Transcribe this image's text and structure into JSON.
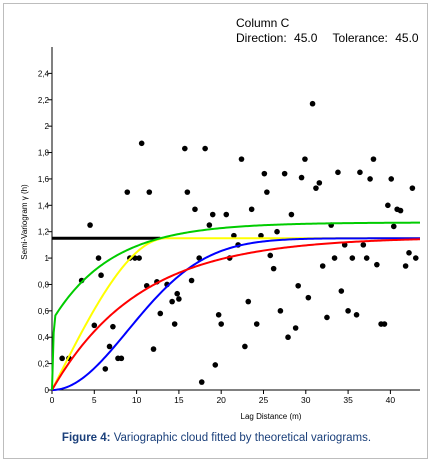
{
  "chart_data": {
    "type": "scatter",
    "header": {
      "title": "Column C",
      "direction_label": "Direction:",
      "direction_value": "45.0",
      "tolerance_label": "Tolerance:",
      "tolerance_value": "45.0"
    },
    "xlabel": "Lag Distance (m)",
    "ylabel": "Semi-Variogram γ (h)",
    "xlim": [
      0,
      43.5
    ],
    "ylim": [
      0,
      2.6
    ],
    "x_ticks": [
      0,
      5,
      10,
      15,
      20,
      25,
      30,
      35,
      40
    ],
    "y_ticks": [
      0,
      0.2,
      0.4,
      0.6,
      0.8,
      1,
      1.2,
      1.4,
      1.6,
      1.8,
      2,
      2.2,
      2.4
    ],
    "x_tick_labels": [
      "0",
      "5",
      "10",
      "15",
      "20",
      "25",
      "30",
      "35",
      "40"
    ],
    "y_tick_labels": [
      "0",
      "0,2",
      "0,4",
      "0,6",
      "0,8",
      "1",
      "1,2",
      "1,4",
      "1,6",
      "1,8",
      "2",
      "2,2",
      "2,4"
    ],
    "series": [
      {
        "kind": "points",
        "color": "#000000",
        "points": [
          [
            1.2,
            0.24
          ],
          [
            2.0,
            0.24
          ],
          [
            3.5,
            0.83
          ],
          [
            4.5,
            1.25
          ],
          [
            5.0,
            0.49
          ],
          [
            5.5,
            1.0
          ],
          [
            5.8,
            0.87
          ],
          [
            6.3,
            0.16
          ],
          [
            6.8,
            0.33
          ],
          [
            7.2,
            0.48
          ],
          [
            7.8,
            0.24
          ],
          [
            8.2,
            0.24
          ],
          [
            8.9,
            1.5
          ],
          [
            9.2,
            1.0
          ],
          [
            9.8,
            1.0
          ],
          [
            10.3,
            1.0
          ],
          [
            10.6,
            1.87
          ],
          [
            11.2,
            0.79
          ],
          [
            11.5,
            1.5
          ],
          [
            12.0,
            0.31
          ],
          [
            12.4,
            0.82
          ],
          [
            12.8,
            0.58
          ],
          [
            13.6,
            0.8
          ],
          [
            14.2,
            0.67
          ],
          [
            14.5,
            0.5
          ],
          [
            14.8,
            0.73
          ],
          [
            15.0,
            0.69
          ],
          [
            15.7,
            1.83
          ],
          [
            16.0,
            1.5
          ],
          [
            16.5,
            0.83
          ],
          [
            16.9,
            1.37
          ],
          [
            17.4,
            1.0
          ],
          [
            17.7,
            0.06
          ],
          [
            18.1,
            1.83
          ],
          [
            18.6,
            1.25
          ],
          [
            19.0,
            1.33
          ],
          [
            19.3,
            0.19
          ],
          [
            19.7,
            0.57
          ],
          [
            20.0,
            0.5
          ],
          [
            20.6,
            1.33
          ],
          [
            21.0,
            1.0
          ],
          [
            21.5,
            1.17
          ],
          [
            22.0,
            1.1
          ],
          [
            22.4,
            1.75
          ],
          [
            22.8,
            0.33
          ],
          [
            23.2,
            0.67
          ],
          [
            23.6,
            1.37
          ],
          [
            24.2,
            0.5
          ],
          [
            24.7,
            1.17
          ],
          [
            25.1,
            1.64
          ],
          [
            25.4,
            1.5
          ],
          [
            25.8,
            1.02
          ],
          [
            26.2,
            0.92
          ],
          [
            26.6,
            1.2
          ],
          [
            27.0,
            0.6
          ],
          [
            27.5,
            1.64
          ],
          [
            27.9,
            0.4
          ],
          [
            28.3,
            1.33
          ],
          [
            28.8,
            0.47
          ],
          [
            29.1,
            0.79
          ],
          [
            29.5,
            1.61
          ],
          [
            29.9,
            1.75
          ],
          [
            30.3,
            0.7
          ],
          [
            30.8,
            2.17
          ],
          [
            31.2,
            1.53
          ],
          [
            31.6,
            1.57
          ],
          [
            32.0,
            0.94
          ],
          [
            32.5,
            0.55
          ],
          [
            33.0,
            1.25
          ],
          [
            33.4,
            1.0
          ],
          [
            33.8,
            1.65
          ],
          [
            34.2,
            0.75
          ],
          [
            34.6,
            1.1
          ],
          [
            35.0,
            0.6
          ],
          [
            35.5,
            1.0
          ],
          [
            36.0,
            0.57
          ],
          [
            36.4,
            1.65
          ],
          [
            36.8,
            1.1
          ],
          [
            37.2,
            1.0
          ],
          [
            37.6,
            1.6
          ],
          [
            38.0,
            1.75
          ],
          [
            38.4,
            0.95
          ],
          [
            38.9,
            0.5
          ],
          [
            39.3,
            0.5
          ],
          [
            39.7,
            1.4
          ],
          [
            40.1,
            1.6
          ],
          [
            40.4,
            1.24
          ],
          [
            40.8,
            1.37
          ],
          [
            41.2,
            1.36
          ],
          [
            41.8,
            0.94
          ],
          [
            42.2,
            1.04
          ],
          [
            42.6,
            1.53
          ],
          [
            43.0,
            1.0
          ]
        ]
      },
      {
        "kind": "line",
        "color": "#000000",
        "points": [
          [
            0,
            1.15
          ],
          [
            12.8,
            1.15
          ]
        ]
      },
      {
        "kind": "curve",
        "model": "spherical",
        "color": "#ffff00",
        "nugget": 0,
        "sill": 1.15,
        "range": 13.5
      },
      {
        "kind": "curve",
        "model": "gaussian",
        "color": "#0000ff",
        "nugget": 0,
        "sill": 1.15,
        "range": 22
      },
      {
        "kind": "curve",
        "model": "exponential",
        "color": "#ff0000",
        "nugget": 0,
        "sill": 1.16,
        "range": 31
      },
      {
        "kind": "curve",
        "model": "power_rise",
        "color": "#00cc00",
        "nugget": 0.55,
        "sill": 1.27,
        "range": 3.0
      }
    ]
  },
  "caption": {
    "label": "Figure 4:",
    "text": "Variographic cloud fitted by theoretical variograms."
  }
}
